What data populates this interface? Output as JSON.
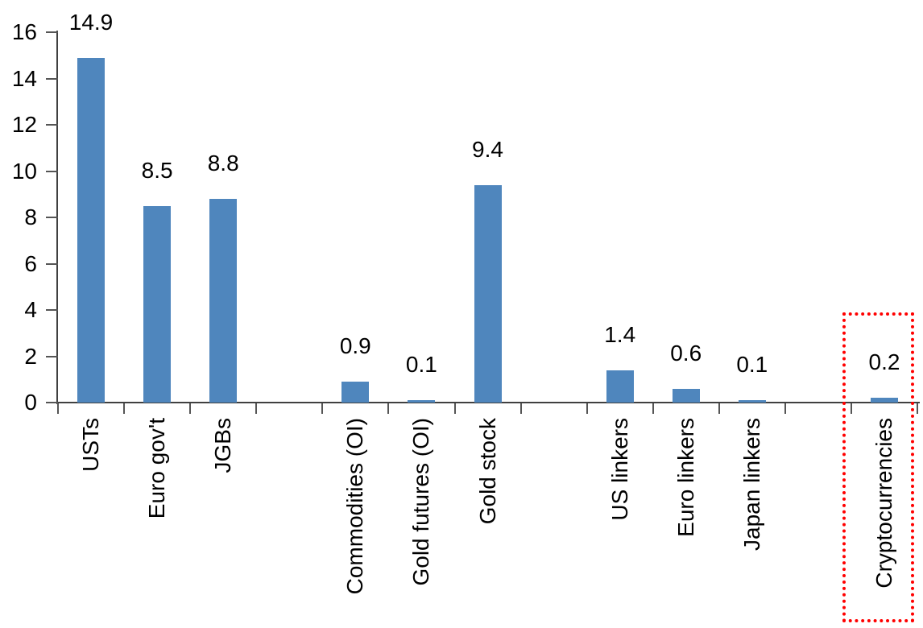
{
  "chart_data": {
    "type": "bar",
    "title": "",
    "xlabel": "",
    "ylabel": "",
    "categories": [
      "USTs",
      "Euro gov't",
      "JGBs",
      "Commodities (OI)",
      "Gold futures (OI)",
      "Gold stock",
      "US linkers",
      "Euro linkers",
      "Japan linkers",
      "Cryptocurrencies"
    ],
    "values": [
      14.9,
      8.5,
      8.8,
      0.9,
      0.1,
      9.4,
      1.4,
      0.6,
      0.1,
      0.2
    ],
    "data_labels": [
      "14.9",
      "8.5",
      "8.8",
      "0.9",
      "0.1",
      "9.4",
      "1.4",
      "0.6",
      "0.1",
      "0.2"
    ],
    "category_groups": [
      [
        "USTs",
        "Euro gov't",
        "JGBs"
      ],
      [
        "Commodities (OI)",
        "Gold futures (OI)",
        "Gold stock"
      ],
      [
        "US linkers",
        "Euro linkers",
        "Japan linkers"
      ],
      [
        "Cryptocurrencies"
      ]
    ],
    "ylim": [
      0,
      16
    ],
    "ytick_step": 2,
    "ytick_labels": [
      "0",
      "2",
      "4",
      "6",
      "8",
      "10",
      "12",
      "14",
      "16"
    ],
    "grid": false,
    "legend": false,
    "bar_color": "#4F86BD",
    "axis_color": "#404040",
    "label_color": "#000000",
    "highlight": {
      "category": "Cryptocurrencies",
      "shape": "red-dotted-rectangle",
      "color": "#FF0000"
    }
  }
}
